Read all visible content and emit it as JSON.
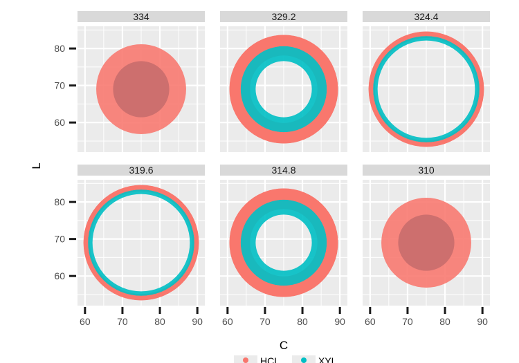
{
  "chart_data": {
    "type": "scatter",
    "facet_type": "facet_wrap",
    "xlabel": "C",
    "ylabel": "L",
    "xlim": [
      58,
      92
    ],
    "ylim": [
      52,
      86
    ],
    "x_ticks": [
      60,
      70,
      80,
      90
    ],
    "y_ticks": [
      60,
      70,
      80
    ],
    "grid": true,
    "legend_position": "bottom",
    "series": [
      {
        "name": "HCL",
        "color": "#f8766d"
      },
      {
        "name": "XYL",
        "color": "#00bfc4"
      }
    ],
    "panels": [
      {
        "title": "334",
        "center_x": 75,
        "center_y": 69,
        "red_inner_radius": 0,
        "red_outer_radius": 12,
        "teal_inner_radius": 0,
        "teal_outer_radius": 7.5
      },
      {
        "title": "329.2",
        "center_x": 75,
        "center_y": 69,
        "red_inner_radius": 9,
        "red_outer_radius": 14.5,
        "teal_inner_radius": 7.5,
        "teal_outer_radius": 11.5
      },
      {
        "title": "324.4",
        "center_x": 75,
        "center_y": 69,
        "red_inner_radius": 13.7,
        "red_outer_radius": 15.4,
        "teal_inner_radius": 13,
        "teal_outer_radius": 14.2
      },
      {
        "title": "319.6",
        "center_x": 75,
        "center_y": 69,
        "red_inner_radius": 13.7,
        "red_outer_radius": 15.4,
        "teal_inner_radius": 13,
        "teal_outer_radius": 14.2
      },
      {
        "title": "314.8",
        "center_x": 75,
        "center_y": 69,
        "red_inner_radius": 9,
        "red_outer_radius": 14.5,
        "teal_inner_radius": 7.5,
        "teal_outer_radius": 11.5
      },
      {
        "title": "310",
        "center_x": 75,
        "center_y": 69,
        "red_inner_radius": 0,
        "red_outer_radius": 12,
        "teal_inner_radius": 0,
        "teal_outer_radius": 7.5
      }
    ]
  }
}
